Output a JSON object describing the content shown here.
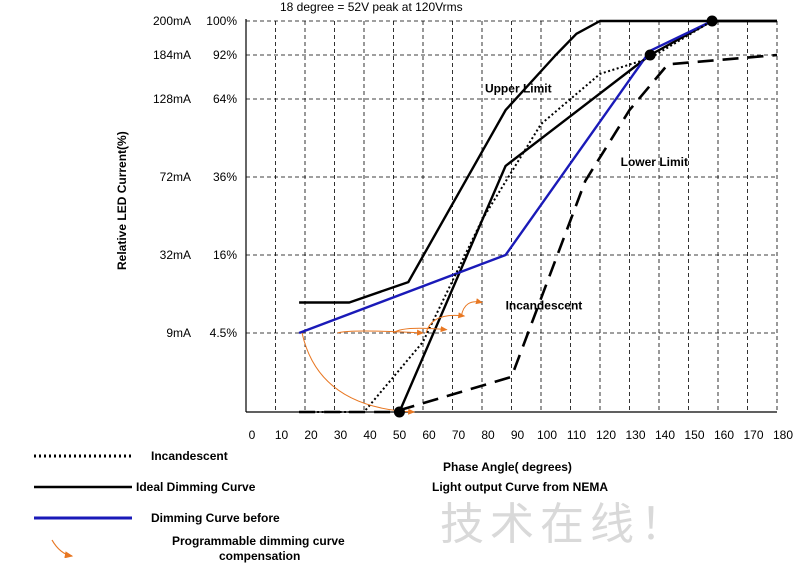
{
  "chart_data": {
    "type": "line",
    "title": "",
    "note": "18 degree = 52V peak  at 120Vrms",
    "xlabel": "Phase Angle( degrees)",
    "xlabel2": "Light output Curve from NEMA",
    "ylabel": "Relative LED Current(%)",
    "xlim": [
      0,
      180
    ],
    "xticks": [
      0,
      10,
      20,
      30,
      40,
      50,
      60,
      70,
      80,
      90,
      100,
      110,
      120,
      130,
      140,
      150,
      160,
      170,
      180
    ],
    "yticks": [
      {
        "label_ma": "200mA",
        "label_pct": "100%",
        "value": 100
      },
      {
        "label_ma": "184mA",
        "label_pct": "92%",
        "value": 92
      },
      {
        "label_ma": "128mA",
        "label_pct": "64%",
        "value": 64
      },
      {
        "label_ma": "72mA",
        "label_pct": "36%",
        "value": 36
      },
      {
        "label_ma": "32mA",
        "label_pct": "16%",
        "value": 16
      },
      {
        "label_ma": "9mA",
        "label_pct": "4.5%",
        "value": 4.5
      }
    ],
    "grid": true,
    "series": [
      {
        "name": "Upper Limit",
        "style": "solid",
        "color": "#000000",
        "points": [
          [
            18,
            9
          ],
          [
            35,
            9
          ],
          [
            55,
            12
          ],
          [
            88,
            60
          ],
          [
            105,
            92
          ],
          [
            112,
            97
          ],
          [
            120,
            100
          ],
          [
            180,
            100
          ]
        ]
      },
      {
        "name": "Ideal Dimming Curve",
        "style": "solid",
        "color": "#000000",
        "points": [
          [
            52,
            0
          ],
          [
            88,
            40
          ],
          [
            137,
            92
          ],
          [
            158,
            100
          ],
          [
            180,
            100
          ]
        ]
      },
      {
        "name": "Dimming Curve before",
        "style": "solid",
        "color": "#1a1ab8",
        "points": [
          [
            18,
            4.5
          ],
          [
            88,
            16
          ],
          [
            137,
            93
          ],
          [
            158,
            100
          ]
        ]
      },
      {
        "name": "Incandescent",
        "style": "dotted",
        "color": "#000000",
        "points": [
          [
            18,
            0
          ],
          [
            40,
            0
          ],
          [
            60,
            4
          ],
          [
            80,
            25
          ],
          [
            100,
            55
          ],
          [
            120,
            80
          ],
          [
            137,
            90
          ],
          [
            158,
            100
          ]
        ]
      },
      {
        "name": "Lower Limit",
        "style": "dashed",
        "color": "#000000",
        "points": [
          [
            18,
            0
          ],
          [
            50,
            0
          ],
          [
            90,
            2
          ],
          [
            115,
            35
          ],
          [
            130,
            60
          ],
          [
            143,
            86
          ],
          [
            155,
            88
          ],
          [
            180,
            92
          ]
        ]
      }
    ],
    "markers": [
      [
        52,
        0
      ],
      [
        137,
        92
      ],
      [
        158,
        100
      ]
    ],
    "annotations": [
      {
        "text": "Upper Limit",
        "x": 81,
        "y": 68
      },
      {
        "text": "Lower Limit",
        "x": 127,
        "y": 40
      },
      {
        "text": "Incandescent",
        "x": 88,
        "y": 8
      }
    ],
    "compensation_arrows": [
      {
        "from": [
          19,
          4.5
        ],
        "to": [
          57,
          0
        ]
      },
      {
        "from": [
          31,
          4.5
        ],
        "to": [
          60,
          4.5
        ]
      },
      {
        "from": [
          50,
          4.5
        ],
        "to": [
          68,
          5
        ]
      },
      {
        "from": [
          61,
          4.5
        ],
        "to": [
          74,
          7
        ]
      },
      {
        "from": [
          73,
          7
        ],
        "to": [
          80,
          9
        ]
      }
    ]
  },
  "legend": {
    "incandescent": "Incandescent",
    "ideal": "Ideal Dimming Curve",
    "before": "Dimming Curve before",
    "programmable_1": "Programmable dimming curve",
    "programmable_2": "compensation"
  },
  "colors": {
    "blue": "#1a1ab8",
    "orange": "#e87722"
  },
  "watermark": "技术在线！"
}
